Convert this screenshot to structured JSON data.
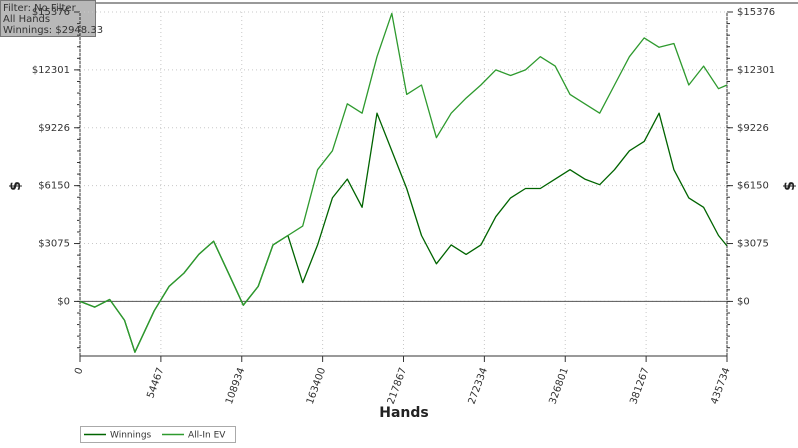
{
  "chart_data": {
    "type": "line",
    "annotations": [
      "Filter: No Filter",
      "All Hands",
      "Winnings: $2948.33"
    ],
    "xlabel": "Hands",
    "ylabel": "$",
    "xlim": [
      0,
      435734
    ],
    "xticks": [
      0,
      54467,
      108934,
      163400,
      217867,
      272334,
      326801,
      381267,
      435734
    ],
    "ylim": [
      -2900,
      15376
    ],
    "yticks": [
      {
        "value": 0,
        "label": "$0"
      },
      {
        "value": 3075,
        "label": "$3075"
      },
      {
        "value": 6150,
        "label": "$6150"
      },
      {
        "value": 9226,
        "label": "$9226"
      },
      {
        "value": 12301,
        "label": "$12301"
      },
      {
        "value": 15376,
        "label": "$15376"
      }
    ],
    "grid": true,
    "x": [
      0,
      10000,
      20000,
      30000,
      37000,
      50000,
      60000,
      70000,
      80000,
      90000,
      100000,
      110000,
      120000,
      130000,
      140000,
      150000,
      160000,
      170000,
      180000,
      190000,
      200000,
      210000,
      220000,
      230000,
      240000,
      250000,
      260000,
      270000,
      280000,
      290000,
      300000,
      310000,
      320000,
      330000,
      340000,
      350000,
      360000,
      370000,
      380000,
      390000,
      400000,
      410000,
      420000,
      430000,
      435734
    ],
    "series": [
      {
        "name": "Winnings",
        "color": "#006400",
        "values": [
          0,
          -300,
          100,
          -1000,
          -2700,
          -500,
          800,
          1500,
          2500,
          3200,
          1500,
          -200,
          800,
          3000,
          3500,
          1000,
          3000,
          5500,
          6500,
          5000,
          10000,
          8000,
          6000,
          3500,
          2000,
          3000,
          2500,
          3000,
          4500,
          5500,
          6000,
          6000,
          6500,
          7000,
          6500,
          6200,
          7000,
          8000,
          8500,
          10000,
          7000,
          5500,
          5000,
          3500,
          2948.33
        ]
      },
      {
        "name": "All-In EV",
        "color": "#2e9a2e",
        "values": [
          0,
          -300,
          100,
          -1000,
          -2700,
          -500,
          800,
          1500,
          2500,
          3200,
          1500,
          -200,
          800,
          3000,
          3500,
          4000,
          7000,
          8000,
          10500,
          10000,
          13000,
          15300,
          11000,
          11500,
          8700,
          10000,
          10800,
          11500,
          12300,
          12000,
          12300,
          13000,
          12500,
          11000,
          10500,
          10000,
          11500,
          13000,
          14000,
          13500,
          13700,
          11500,
          12500,
          11300,
          11500
        ]
      }
    ]
  }
}
